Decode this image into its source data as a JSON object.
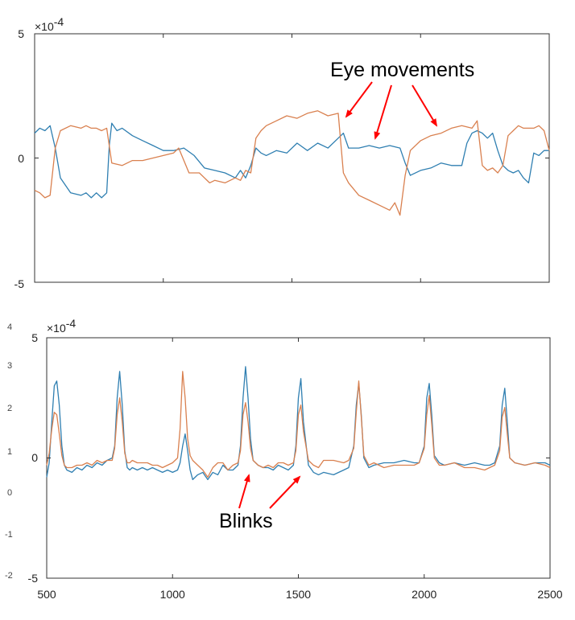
{
  "chart_data": [
    {
      "type": "line",
      "title": "",
      "xlabel": "",
      "ylabel": "",
      "xlim": [
        500,
        2500
      ],
      "ylim": [
        -5,
        5
      ],
      "y_exponent_label": "×10",
      "y_exponent_power": "-4",
      "yticks": [
        "5",
        "0",
        "-5"
      ],
      "xticks": [],
      "annotation": "Eye movements",
      "series": [
        {
          "color": "#2f7fb1",
          "x": [
            500,
            520,
            540,
            560,
            580,
            600,
            640,
            680,
            700,
            720,
            740,
            760,
            780,
            790,
            800,
            820,
            840,
            880,
            920,
            960,
            1000,
            1040,
            1080,
            1120,
            1160,
            1200,
            1240,
            1280,
            1300,
            1320,
            1340,
            1360,
            1380,
            1400,
            1440,
            1480,
            1520,
            1560,
            1600,
            1640,
            1680,
            1700,
            1720,
            1760,
            1800,
            1840,
            1880,
            1920,
            1940,
            1960,
            2000,
            2040,
            2080,
            2120,
            2160,
            2180,
            2200,
            2220,
            2240,
            2260,
            2280,
            2300,
            2320,
            2340,
            2360,
            2380,
            2400,
            2420,
            2440,
            2460,
            2480,
            2500
          ],
          "y": [
            1.0,
            1.2,
            1.1,
            1.3,
            0.4,
            -0.8,
            -1.4,
            -1.5,
            -1.4,
            -1.6,
            -1.4,
            -1.6,
            -1.4,
            0.5,
            1.4,
            1.1,
            1.2,
            0.9,
            0.7,
            0.5,
            0.3,
            0.3,
            0.4,
            0.1,
            -0.4,
            -0.5,
            -0.6,
            -0.8,
            -0.5,
            -0.8,
            -0.3,
            0.4,
            0.2,
            0.1,
            0.3,
            0.2,
            0.6,
            0.3,
            0.6,
            0.4,
            0.8,
            1.0,
            0.4,
            0.4,
            0.5,
            0.4,
            0.5,
            0.4,
            -0.2,
            -0.7,
            -0.5,
            -0.4,
            -0.2,
            -0.3,
            -0.3,
            0.6,
            1.0,
            1.1,
            1.0,
            0.8,
            1.0,
            0.3,
            -0.3,
            -0.5,
            -0.6,
            -0.5,
            -0.8,
            -1.0,
            0.2,
            0.1,
            0.3,
            0.3
          ]
        },
        {
          "color": "#d9804f",
          "x": [
            500,
            520,
            540,
            560,
            580,
            600,
            640,
            680,
            700,
            720,
            740,
            760,
            780,
            800,
            840,
            880,
            920,
            960,
            1000,
            1040,
            1060,
            1100,
            1140,
            1180,
            1200,
            1240,
            1280,
            1300,
            1320,
            1340,
            1360,
            1380,
            1400,
            1440,
            1480,
            1520,
            1560,
            1600,
            1640,
            1680,
            1700,
            1720,
            1760,
            1800,
            1840,
            1880,
            1900,
            1920,
            1940,
            1960,
            2000,
            2040,
            2080,
            2120,
            2160,
            2200,
            2220,
            2240,
            2260,
            2280,
            2300,
            2320,
            2340,
            2360,
            2380,
            2400,
            2420,
            2440,
            2460,
            2480,
            2500
          ],
          "y": [
            -1.3,
            -1.4,
            -1.6,
            -1.5,
            0.4,
            1.1,
            1.3,
            1.2,
            1.3,
            1.2,
            1.2,
            1.1,
            1.2,
            -0.2,
            -0.3,
            -0.1,
            -0.1,
            0.0,
            0.1,
            0.2,
            0.4,
            -0.6,
            -0.6,
            -1.0,
            -0.9,
            -1.0,
            -0.8,
            -0.9,
            -0.5,
            -0.6,
            0.8,
            1.1,
            1.3,
            1.5,
            1.7,
            1.6,
            1.8,
            1.9,
            1.7,
            1.8,
            -0.6,
            -1.0,
            -1.5,
            -1.7,
            -1.9,
            -2.1,
            -1.8,
            -2.3,
            -0.7,
            0.3,
            0.7,
            0.9,
            1.0,
            1.2,
            1.3,
            1.2,
            1.5,
            -0.3,
            -0.5,
            -0.4,
            -0.6,
            -0.3,
            0.9,
            1.1,
            1.3,
            1.2,
            1.2,
            1.2,
            1.3,
            1.1,
            0.3
          ]
        }
      ]
    },
    {
      "type": "line",
      "title": "",
      "xlabel": "",
      "ylabel": "",
      "xlim": [
        500,
        2500
      ],
      "ylim": [
        -5,
        5
      ],
      "y_exponent_label": "×10",
      "y_exponent_power": "-4",
      "yticks": [
        "5",
        "0",
        "-5"
      ],
      "xticks": [
        "500",
        "1000",
        "1500",
        "2000",
        "2500"
      ],
      "extra_left_labels": [
        "4",
        "3",
        "2",
        "1",
        "0",
        "-1",
        "-2"
      ],
      "annotation": "Blinks",
      "series": [
        {
          "color": "#2f7fb1",
          "x": [
            500,
            510,
            520,
            530,
            540,
            550,
            560,
            570,
            580,
            600,
            620,
            640,
            660,
            680,
            700,
            720,
            740,
            760,
            770,
            780,
            790,
            800,
            810,
            820,
            830,
            840,
            860,
            880,
            900,
            920,
            940,
            960,
            980,
            1000,
            1020,
            1030,
            1040,
            1050,
            1060,
            1070,
            1080,
            1100,
            1120,
            1140,
            1160,
            1180,
            1200,
            1220,
            1240,
            1260,
            1270,
            1280,
            1290,
            1300,
            1310,
            1320,
            1340,
            1360,
            1380,
            1400,
            1420,
            1440,
            1460,
            1480,
            1490,
            1500,
            1510,
            1520,
            1540,
            1560,
            1580,
            1600,
            1640,
            1680,
            1700,
            1720,
            1730,
            1740,
            1750,
            1760,
            1780,
            1800,
            1840,
            1880,
            1920,
            1960,
            1980,
            2000,
            2010,
            2020,
            2030,
            2040,
            2060,
            2080,
            2120,
            2160,
            2200,
            2240,
            2260,
            2280,
            2300,
            2310,
            2320,
            2330,
            2340,
            2360,
            2400,
            2440,
            2480,
            2500
          ],
          "y": [
            -0.8,
            -0.2,
            1.5,
            3.0,
            3.2,
            2.2,
            0.5,
            -0.3,
            -0.5,
            -0.6,
            -0.4,
            -0.5,
            -0.3,
            -0.4,
            -0.2,
            -0.3,
            -0.1,
            0.0,
            0.5,
            2.5,
            3.6,
            2.2,
            0.3,
            -0.4,
            -0.5,
            -0.4,
            -0.5,
            -0.4,
            -0.5,
            -0.4,
            -0.5,
            -0.6,
            -0.5,
            -0.6,
            -0.5,
            -0.2,
            0.5,
            1.0,
            0.3,
            -0.5,
            -0.9,
            -0.7,
            -0.6,
            -0.9,
            -0.6,
            -0.7,
            -0.3,
            -0.5,
            -0.5,
            -0.3,
            0.5,
            2.5,
            3.8,
            2.5,
            0.8,
            -0.1,
            -0.3,
            -0.4,
            -0.4,
            -0.5,
            -0.3,
            -0.4,
            -0.5,
            -0.3,
            0.5,
            2.5,
            3.3,
            1.5,
            -0.3,
            -0.6,
            -0.7,
            -0.6,
            -0.7,
            -0.5,
            -0.4,
            0.5,
            2.2,
            3.1,
            1.8,
            0.0,
            -0.4,
            -0.3,
            -0.2,
            -0.2,
            -0.1,
            -0.2,
            -0.2,
            0.5,
            2.5,
            3.1,
            1.8,
            0.1,
            -0.2,
            -0.3,
            -0.2,
            -0.3,
            -0.2,
            -0.3,
            -0.3,
            -0.2,
            0.5,
            2.2,
            2.9,
            1.5,
            0.0,
            -0.2,
            -0.3,
            -0.2,
            -0.2,
            -0.3
          ]
        },
        {
          "color": "#d9804f",
          "x": [
            500,
            510,
            520,
            530,
            540,
            550,
            560,
            570,
            580,
            600,
            620,
            640,
            660,
            680,
            700,
            720,
            740,
            760,
            770,
            780,
            790,
            800,
            810,
            820,
            830,
            840,
            860,
            880,
            900,
            920,
            940,
            960,
            980,
            1000,
            1020,
            1030,
            1040,
            1050,
            1060,
            1070,
            1080,
            1100,
            1120,
            1140,
            1160,
            1180,
            1200,
            1220,
            1240,
            1260,
            1270,
            1280,
            1290,
            1300,
            1310,
            1320,
            1340,
            1360,
            1380,
            1400,
            1420,
            1440,
            1460,
            1480,
            1490,
            1500,
            1510,
            1520,
            1540,
            1560,
            1580,
            1600,
            1640,
            1680,
            1700,
            1720,
            1730,
            1740,
            1750,
            1760,
            1780,
            1800,
            1840,
            1880,
            1920,
            1960,
            1980,
            2000,
            2010,
            2020,
            2030,
            2040,
            2060,
            2080,
            2120,
            2160,
            2200,
            2240,
            2260,
            2280,
            2300,
            2310,
            2320,
            2330,
            2340,
            2360,
            2400,
            2440,
            2480,
            2500
          ],
          "y": [
            -0.3,
            0.2,
            1.2,
            1.9,
            1.8,
            1.0,
            0.1,
            -0.3,
            -0.4,
            -0.4,
            -0.3,
            -0.3,
            -0.2,
            -0.3,
            -0.1,
            -0.2,
            -0.1,
            -0.1,
            0.4,
            1.8,
            2.5,
            1.5,
            0.2,
            -0.2,
            -0.2,
            -0.1,
            -0.2,
            -0.2,
            -0.2,
            -0.3,
            -0.3,
            -0.4,
            -0.3,
            -0.2,
            0.0,
            1.2,
            3.6,
            2.5,
            0.8,
            0.1,
            -0.1,
            -0.3,
            -0.5,
            -0.8,
            -0.4,
            -0.2,
            -0.2,
            -0.5,
            -0.3,
            -0.2,
            0.3,
            1.8,
            2.3,
            1.5,
            0.4,
            -0.1,
            -0.3,
            -0.4,
            -0.3,
            -0.4,
            -0.2,
            -0.2,
            -0.3,
            -0.2,
            0.3,
            1.8,
            2.2,
            1.1,
            -0.1,
            -0.3,
            -0.4,
            -0.1,
            -0.1,
            -0.2,
            -0.1,
            0.4,
            1.9,
            3.2,
            1.7,
            0.1,
            -0.3,
            -0.2,
            -0.4,
            -0.3,
            -0.3,
            -0.3,
            -0.2,
            0.4,
            1.8,
            2.6,
            1.4,
            0.0,
            -0.3,
            -0.3,
            -0.2,
            -0.4,
            -0.4,
            -0.5,
            -0.4,
            -0.3,
            0.3,
            1.7,
            2.1,
            1.0,
            0.0,
            -0.2,
            -0.3,
            -0.2,
            -0.3,
            -0.4
          ]
        }
      ]
    }
  ]
}
